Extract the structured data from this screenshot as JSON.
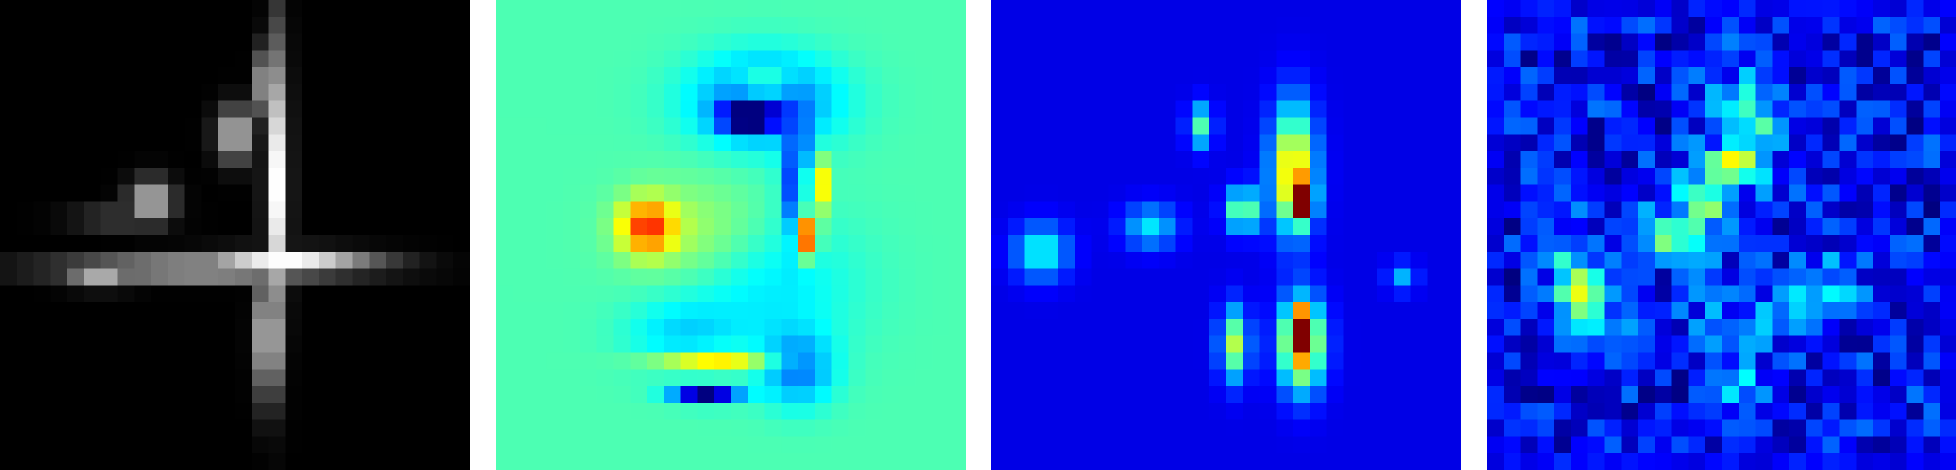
{
  "figure": {
    "panels": [
      {
        "id": "p1",
        "colormap": "gray",
        "background": "#000000",
        "grid_size": 28,
        "blobs": [
          {
            "cx": 16,
            "cy": 5,
            "rx": 0.6,
            "ry": 2,
            "v": 1.0
          },
          {
            "cx": 16.5,
            "cy": 11,
            "rx": 0.6,
            "ry": 8,
            "v": 1.0
          },
          {
            "cx": 14,
            "cy": 8,
            "rx": 1.0,
            "ry": 1.5,
            "v": 0.8
          },
          {
            "cx": 12,
            "cy": 16,
            "rx": 8,
            "ry": 0.6,
            "v": 0.95
          },
          {
            "cx": 17,
            "cy": 15.5,
            "rx": 5,
            "ry": 0.6,
            "v": 1.0
          },
          {
            "cx": 7,
            "cy": 13,
            "rx": 2.6,
            "ry": 0.4,
            "v": 0.75
          },
          {
            "cx": 9,
            "cy": 12,
            "rx": 1.2,
            "ry": 1.2,
            "v": 0.8
          },
          {
            "cx": 6,
            "cy": 16.5,
            "rx": 2.0,
            "ry": 0.6,
            "v": 0.7
          },
          {
            "cx": 16,
            "cy": 20,
            "rx": 0.7,
            "ry": 3.5,
            "v": 0.95
          }
        ]
      },
      {
        "id": "p2",
        "colormap": "jet",
        "base_value": 0.45,
        "grid_size": 28,
        "blobs": [
          {
            "cx": 16,
            "cy": 6,
            "rx": 4,
            "ry": 2.5,
            "v": -0.25
          },
          {
            "cx": 16,
            "cy": 5,
            "rx": 1.5,
            "ry": 0.5,
            "v": 0.35
          },
          {
            "cx": 15,
            "cy": 7,
            "rx": 1.5,
            "ry": 0.8,
            "v": -0.45
          },
          {
            "cx": 18,
            "cy": 11,
            "rx": 0.8,
            "ry": 3,
            "v": -0.35
          },
          {
            "cx": 19,
            "cy": 11,
            "rx": 0.6,
            "ry": 1.5,
            "v": 0.4
          },
          {
            "cx": 18.5,
            "cy": 14,
            "rx": 0.6,
            "ry": 1.2,
            "v": 0.5
          },
          {
            "cx": 9,
            "cy": 13.5,
            "rx": 1.5,
            "ry": 1.5,
            "v": 0.35
          },
          {
            "cx": 12,
            "cy": 14,
            "rx": 4,
            "ry": 3,
            "v": 0.1
          },
          {
            "cx": 16,
            "cy": 17,
            "rx": 5,
            "ry": 4,
            "v": -0.1
          },
          {
            "cx": 13,
            "cy": 21.5,
            "rx": 3.5,
            "ry": 0.6,
            "v": 0.25
          },
          {
            "cx": 12.5,
            "cy": 23.5,
            "rx": 1.8,
            "ry": 0.5,
            "v": -0.45
          },
          {
            "cx": 18,
            "cy": 22,
            "rx": 2,
            "ry": 2,
            "v": -0.2
          },
          {
            "cx": 11,
            "cy": 20,
            "rx": 3,
            "ry": 2,
            "v": -0.1
          }
        ]
      },
      {
        "id": "p3",
        "colormap": "jet",
        "base_value": 0.1,
        "grid_size": 28,
        "blobs": [
          {
            "cx": 12.5,
            "cy": 7.5,
            "rx": 0.7,
            "ry": 1.2,
            "v": 0.35
          },
          {
            "cx": 18,
            "cy": 10,
            "rx": 1.2,
            "ry": 3.5,
            "v": 0.6
          },
          {
            "cx": 18.5,
            "cy": 12,
            "rx": 0.6,
            "ry": 1,
            "v": 0.9
          },
          {
            "cx": 15,
            "cy": 12.5,
            "rx": 0.9,
            "ry": 1.2,
            "v": 0.45
          },
          {
            "cx": 9.5,
            "cy": 13.5,
            "rx": 1.5,
            "ry": 1.2,
            "v": 0.25
          },
          {
            "cx": 3,
            "cy": 15,
            "rx": 1.5,
            "ry": 1.5,
            "v": 0.3
          },
          {
            "cx": 24.5,
            "cy": 16.5,
            "rx": 0.8,
            "ry": 0.8,
            "v": 0.2
          },
          {
            "cx": 14.5,
            "cy": 20.5,
            "rx": 0.8,
            "ry": 2,
            "v": 0.45
          },
          {
            "cx": 18.5,
            "cy": 20.5,
            "rx": 1.2,
            "ry": 2.5,
            "v": 0.7
          },
          {
            "cx": 18.5,
            "cy": 19.5,
            "rx": 0.5,
            "ry": 0.8,
            "v": 0.95
          }
        ]
      },
      {
        "id": "p4",
        "colormap": "jet",
        "base_value": 0.12,
        "grid_size": 28,
        "noise": 0.12,
        "blobs": [
          {
            "cx": 15.5,
            "cy": 7,
            "rx": 2,
            "ry": 2.5,
            "v": 0.3
          },
          {
            "cx": 11,
            "cy": 14,
            "rx": 3,
            "ry": 1.5,
            "v": 0.3
          },
          {
            "cx": 13,
            "cy": 11,
            "rx": 2,
            "ry": 1.5,
            "v": 0.2
          },
          {
            "cx": 15,
            "cy": 10,
            "rx": 1.5,
            "ry": 1,
            "v": 0.35
          },
          {
            "cx": 13,
            "cy": 12,
            "rx": 0.6,
            "ry": 0.5,
            "v": 0.85
          },
          {
            "cx": 6,
            "cy": 17.5,
            "rx": 1.5,
            "ry": 1.5,
            "v": 0.35
          },
          {
            "cx": 5,
            "cy": 16,
            "rx": 1,
            "ry": 3,
            "v": 0.25
          },
          {
            "cx": 20,
            "cy": 17,
            "rx": 2,
            "ry": 1.5,
            "v": 0.2
          },
          {
            "cx": 15,
            "cy": 23,
            "rx": 1.5,
            "ry": 1.2,
            "v": 0.25
          },
          {
            "cx": 16,
            "cy": 19,
            "rx": 4,
            "ry": 2,
            "v": 0.12
          },
          {
            "cx": 8,
            "cy": 20,
            "rx": 2,
            "ry": 1.5,
            "v": 0.15
          }
        ]
      }
    ]
  }
}
